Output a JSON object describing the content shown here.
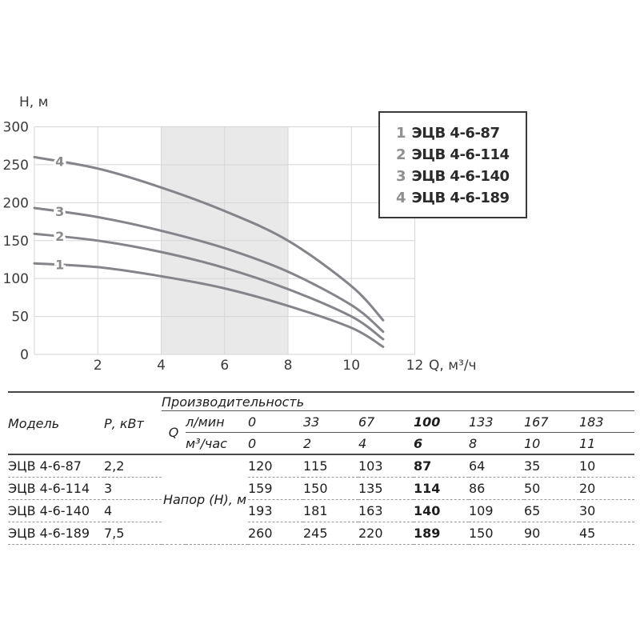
{
  "chart_data": {
    "type": "line",
    "title": "",
    "xlabel": "Q, м³/ч",
    "ylabel": "Н, м",
    "xlim": [
      0,
      12
    ],
    "ylim": [
      0,
      300
    ],
    "x_ticks": [
      2,
      4,
      6,
      8,
      10,
      12
    ],
    "y_ticks": [
      0,
      50,
      100,
      150,
      200,
      250,
      300
    ],
    "grid": true,
    "legend_position": "top-right",
    "highlight_band_x": [
      4,
      8
    ],
    "x": [
      0,
      2,
      4,
      6,
      8,
      10,
      11
    ],
    "series": [
      {
        "curve_label": "1",
        "name": "ЭЦВ 4-6-87",
        "values": [
          120,
          115,
          103,
          87,
          64,
          35,
          10
        ]
      },
      {
        "curve_label": "2",
        "name": "ЭЦВ 4-6-114",
        "values": [
          159,
          150,
          135,
          114,
          86,
          50,
          20
        ]
      },
      {
        "curve_label": "3",
        "name": "ЭЦВ 4-6-140",
        "values": [
          193,
          181,
          163,
          140,
          109,
          65,
          30
        ]
      },
      {
        "curve_label": "4",
        "name": "ЭЦВ 4-6-189",
        "values": [
          260,
          245,
          220,
          189,
          150,
          90,
          45
        ]
      }
    ]
  },
  "legend": {
    "items": [
      {
        "num": "1",
        "label": "ЭЦВ 4-6-87"
      },
      {
        "num": "2",
        "label": "ЭЦВ 4-6-114"
      },
      {
        "num": "3",
        "label": "ЭЦВ 4-6-140"
      },
      {
        "num": "4",
        "label": "ЭЦВ 4-6-189"
      }
    ]
  },
  "table": {
    "headers": {
      "model": "Модель",
      "power": "Р, кВт",
      "group": "Производительность",
      "q": "Q",
      "napor": "Напор (Н), м",
      "unit_rows": [
        {
          "label": "л/мин",
          "values": [
            "0",
            "33",
            "67",
            "100",
            "133",
            "167",
            "183"
          ],
          "bold_index": 3
        },
        {
          "label": "м³/час",
          "values": [
            "0",
            "2",
            "4",
            "6",
            "8",
            "10",
            "11"
          ],
          "bold_index": 3
        }
      ]
    },
    "rows": [
      {
        "model": "ЭЦВ 4-6-87",
        "power": "2,2",
        "values": [
          "120",
          "115",
          "103",
          "87",
          "64",
          "35",
          "10"
        ],
        "bold_index": 3
      },
      {
        "model": "ЭЦВ 4-6-114",
        "power": "3",
        "values": [
          "159",
          "150",
          "135",
          "114",
          "86",
          "50",
          "20"
        ],
        "bold_index": 3
      },
      {
        "model": "ЭЦВ 4-6-140",
        "power": "4",
        "values": [
          "193",
          "181",
          "163",
          "140",
          "109",
          "65",
          "30"
        ],
        "bold_index": 3
      },
      {
        "model": "ЭЦВ 4-6-189",
        "power": "7,5",
        "values": [
          "260",
          "245",
          "220",
          "189",
          "150",
          "90",
          "45"
        ],
        "bold_index": 3
      }
    ]
  },
  "colors": {
    "curve": "#84848a",
    "curve_label": "#8a8a8a",
    "grid": "#d6d6d6",
    "band": "#e9e9ea",
    "axis_text": "#3b3b3b",
    "legend_border": "#3a3a3a",
    "legend_num": "#8f8f8f",
    "text": "#1e1e1e"
  }
}
